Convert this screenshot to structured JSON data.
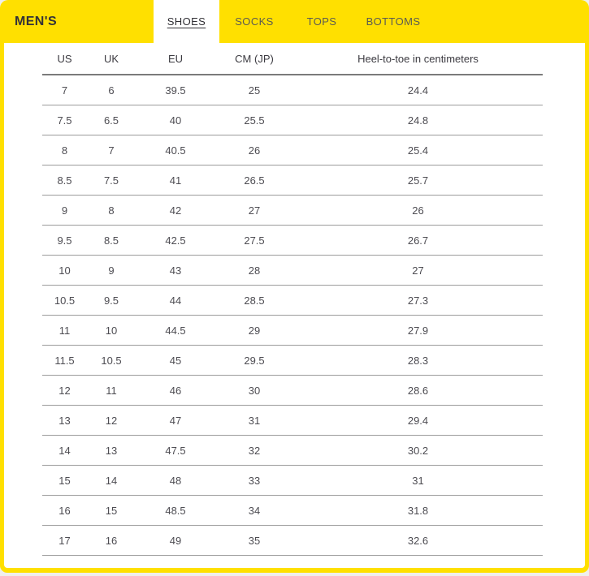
{
  "header": {
    "title": "MEN'S",
    "tabs": [
      {
        "label": "SHOES",
        "active": true
      },
      {
        "label": "SOCKS",
        "active": false
      },
      {
        "label": "TOPS",
        "active": false
      },
      {
        "label": "BOTTOMS",
        "active": false
      }
    ]
  },
  "table": {
    "columns": [
      "US",
      "UK",
      "EU",
      "CM (JP)",
      "Heel-to-toe in centimeters"
    ],
    "rows": [
      [
        "7",
        "6",
        "39.5",
        "25",
        "24.4"
      ],
      [
        "7.5",
        "6.5",
        "40",
        "25.5",
        "24.8"
      ],
      [
        "8",
        "7",
        "40.5",
        "26",
        "25.4"
      ],
      [
        "8.5",
        "7.5",
        "41",
        "26.5",
        "25.7"
      ],
      [
        "9",
        "8",
        "42",
        "27",
        "26"
      ],
      [
        "9.5",
        "8.5",
        "42.5",
        "27.5",
        "26.7"
      ],
      [
        "10",
        "9",
        "43",
        "28",
        "27"
      ],
      [
        "10.5",
        "9.5",
        "44",
        "28.5",
        "27.3"
      ],
      [
        "11",
        "10",
        "44.5",
        "29",
        "27.9"
      ],
      [
        "11.5",
        "10.5",
        "45",
        "29.5",
        "28.3"
      ],
      [
        "12",
        "11",
        "46",
        "30",
        "28.6"
      ],
      [
        "13",
        "12",
        "47",
        "31",
        "29.4"
      ],
      [
        "14",
        "13",
        "47.5",
        "32",
        "30.2"
      ],
      [
        "15",
        "14",
        "48",
        "33",
        "31"
      ],
      [
        "16",
        "15",
        "48.5",
        "34",
        "31.8"
      ],
      [
        "17",
        "16",
        "49",
        "35",
        "32.6"
      ]
    ]
  },
  "colors": {
    "accent_yellow": "#FFE000",
    "active_tab_bg": "#FFFFFF",
    "active_tab_text": "#2F2E33",
    "inactive_tab_text": "#5C5B52",
    "title_text": "#333238",
    "header_text": "#3B3A40",
    "cell_text": "#4D4C52",
    "divider_thick": "#7B7B7B",
    "divider_thin": "#9B9B9B"
  }
}
